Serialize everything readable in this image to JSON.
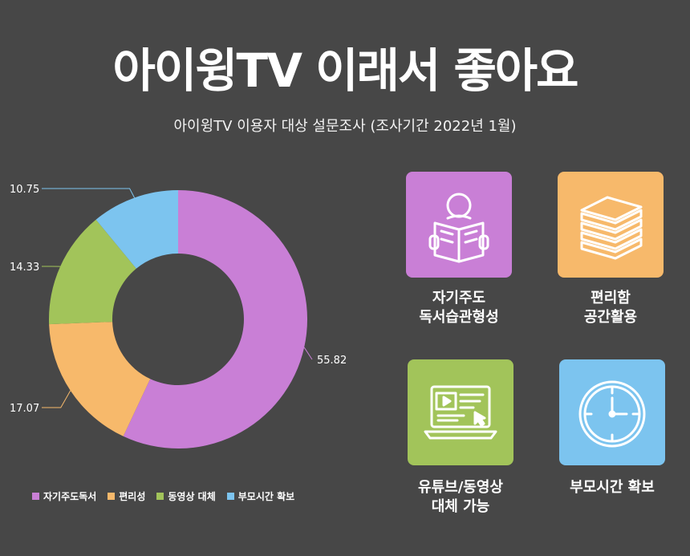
{
  "title": "아이윙TV 이래서 좋아요",
  "subtitle": "아이윙TV 이용자 대상 설문조사 (조사기간 2022년 1월)",
  "chart_data": {
    "type": "donut",
    "categories": [
      "자기주도독서",
      "편리성",
      "동영상 대체",
      "부모시간 확보"
    ],
    "values": [
      55.82,
      17.07,
      14.33,
      10.75
    ],
    "data_labels": [
      "55.82",
      "17.07",
      "14.33",
      "10.75"
    ],
    "colors": [
      "#c97fd6",
      "#f7b96b",
      "#a2c45a",
      "#7cc4ef"
    ],
    "legend_position": "bottom"
  },
  "cards": [
    {
      "lines": [
        "자기주도",
        "독서습관형성"
      ],
      "color": "#c97fd6",
      "icon": "reading-person-icon"
    },
    {
      "lines": [
        "편리함",
        "공간활용"
      ],
      "color": "#f7b96b",
      "icon": "book-stack-icon"
    },
    {
      "lines": [
        "유튜브/동영상",
        "대체 가능"
      ],
      "color": "#a2c45a",
      "icon": "laptop-video-icon"
    },
    {
      "lines": [
        "부모시간 확보"
      ],
      "color": "#7cc4ef",
      "icon": "clock-icon"
    }
  ]
}
